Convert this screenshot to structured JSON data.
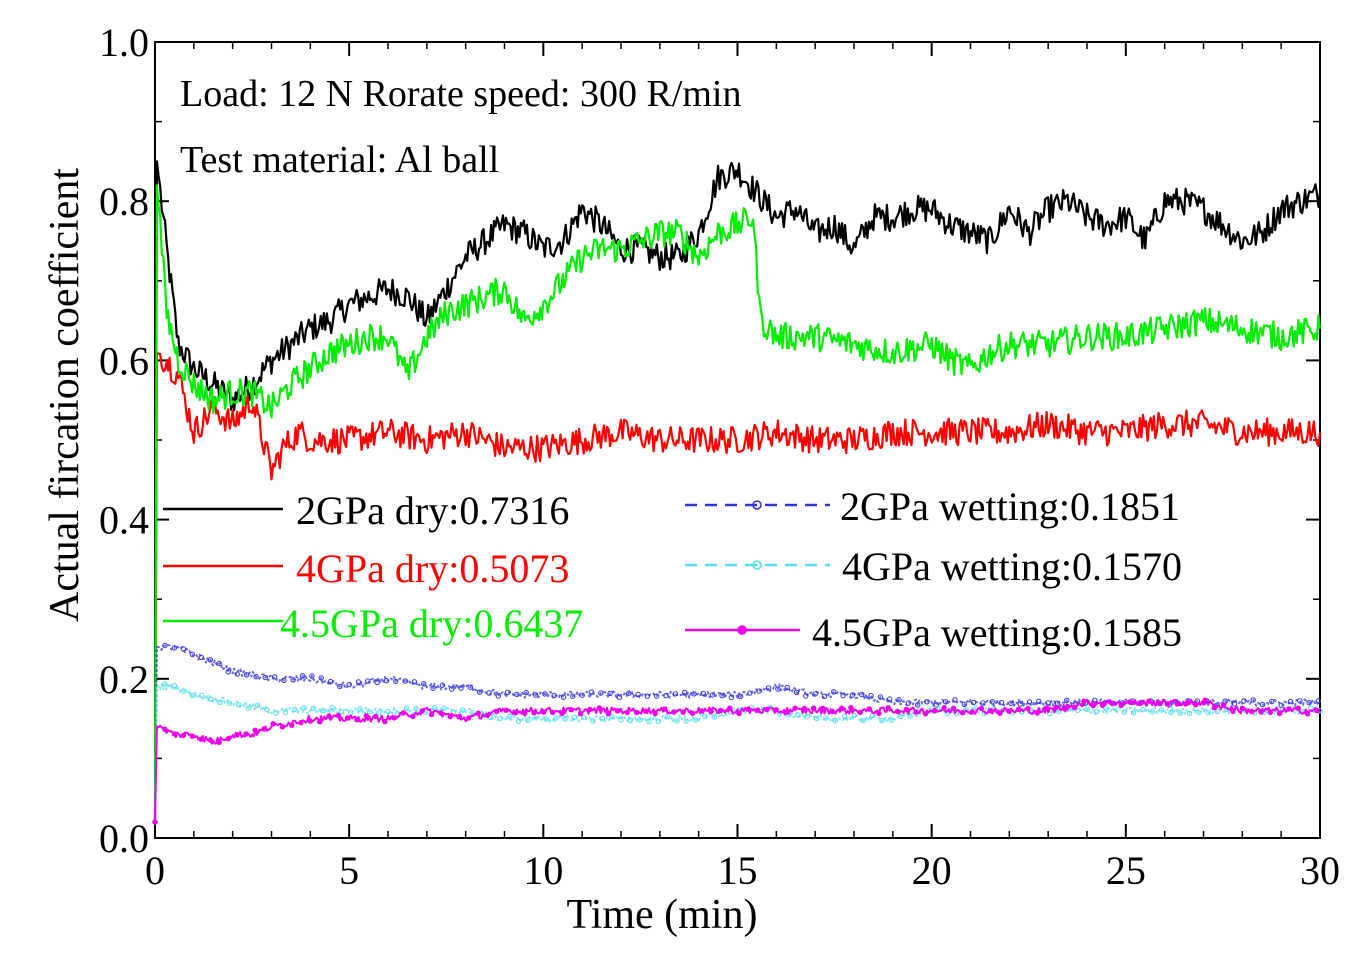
{
  "chart_data": {
    "type": "line",
    "ylabel": "Actual fircation coefficient",
    "xlabel": "Time (min)",
    "xlim": [
      0,
      30
    ],
    "ylim": [
      0,
      1
    ],
    "x_ticks": [
      "0",
      "5",
      "10",
      "15",
      "20",
      "25",
      "30"
    ],
    "y_ticks": [
      "0.0",
      "0.2",
      "0.4",
      "0.6",
      "0.8",
      "1.0"
    ],
    "annotations": [
      "Load: 12 N Rorate speed: 300 R/min",
      "Test material: Al ball"
    ],
    "series": [
      {
        "name": "2GPa dry",
        "legend": "2GPa dry:0.7316",
        "color": "#000000",
        "style": "solid",
        "label_color": "#000000",
        "points": [
          [
            0,
            0.02
          ],
          [
            0.05,
            0.85
          ],
          [
            0.3,
            0.74
          ],
          [
            0.6,
            0.62
          ],
          [
            1.0,
            0.59
          ],
          [
            1.5,
            0.57
          ],
          [
            2.0,
            0.55
          ],
          [
            2.5,
            0.57
          ],
          [
            3.0,
            0.6
          ],
          [
            3.5,
            0.62
          ],
          [
            4.0,
            0.64
          ],
          [
            4.5,
            0.65
          ],
          [
            5.0,
            0.67
          ],
          [
            5.5,
            0.68
          ],
          [
            6.0,
            0.69
          ],
          [
            6.5,
            0.68
          ],
          [
            7.0,
            0.65
          ],
          [
            7.5,
            0.69
          ],
          [
            8.0,
            0.73
          ],
          [
            8.5,
            0.75
          ],
          [
            9.0,
            0.77
          ],
          [
            9.5,
            0.76
          ],
          [
            10.0,
            0.74
          ],
          [
            10.5,
            0.75
          ],
          [
            11.0,
            0.79
          ],
          [
            11.5,
            0.77
          ],
          [
            12.0,
            0.74
          ],
          [
            12.5,
            0.74
          ],
          [
            13.0,
            0.73
          ],
          [
            13.5,
            0.73
          ],
          [
            14.0,
            0.76
          ],
          [
            14.5,
            0.83
          ],
          [
            15.0,
            0.84
          ],
          [
            15.5,
            0.81
          ],
          [
            16.0,
            0.78
          ],
          [
            16.5,
            0.79
          ],
          [
            17.0,
            0.76
          ],
          [
            17.5,
            0.77
          ],
          [
            18.0,
            0.74
          ],
          [
            18.5,
            0.78
          ],
          [
            19.0,
            0.78
          ],
          [
            19.5,
            0.79
          ],
          [
            20.0,
            0.79
          ],
          [
            20.5,
            0.77
          ],
          [
            21.0,
            0.76
          ],
          [
            21.5,
            0.75
          ],
          [
            22.0,
            0.79
          ],
          [
            22.5,
            0.76
          ],
          [
            23.0,
            0.79
          ],
          [
            23.5,
            0.8
          ],
          [
            24.0,
            0.78
          ],
          [
            24.5,
            0.77
          ],
          [
            25.0,
            0.78
          ],
          [
            25.5,
            0.75
          ],
          [
            26.0,
            0.8
          ],
          [
            26.5,
            0.8
          ],
          [
            27.0,
            0.79
          ],
          [
            27.5,
            0.77
          ],
          [
            28.0,
            0.75
          ],
          [
            28.5,
            0.76
          ],
          [
            29.0,
            0.79
          ],
          [
            29.5,
            0.8
          ],
          [
            30.0,
            0.81
          ]
        ]
      },
      {
        "name": "4GPa dry",
        "legend": "4GPa dry:0.5073",
        "color": "#ff0000",
        "style": "solid",
        "label_color": "#ff0000",
        "points": [
          [
            0,
            0.02
          ],
          [
            0.05,
            0.61
          ],
          [
            0.3,
            0.6
          ],
          [
            0.6,
            0.58
          ],
          [
            1.0,
            0.51
          ],
          [
            1.5,
            0.54
          ],
          [
            2.0,
            0.52
          ],
          [
            2.5,
            0.55
          ],
          [
            3.0,
            0.46
          ],
          [
            3.3,
            0.49
          ],
          [
            3.7,
            0.51
          ],
          [
            4.0,
            0.5
          ],
          [
            5.0,
            0.5
          ],
          [
            6.0,
            0.51
          ],
          [
            7.0,
            0.5
          ],
          [
            8.0,
            0.51
          ],
          [
            9.0,
            0.49
          ],
          [
            10.0,
            0.49
          ],
          [
            11.0,
            0.5
          ],
          [
            12.0,
            0.51
          ],
          [
            13.0,
            0.5
          ],
          [
            14.0,
            0.5
          ],
          [
            15.0,
            0.5
          ],
          [
            16.0,
            0.51
          ],
          [
            17.0,
            0.5
          ],
          [
            18.0,
            0.5
          ],
          [
            19.0,
            0.51
          ],
          [
            20.0,
            0.51
          ],
          [
            21.0,
            0.51
          ],
          [
            22.0,
            0.51
          ],
          [
            23.0,
            0.52
          ],
          [
            24.0,
            0.51
          ],
          [
            25.0,
            0.51
          ],
          [
            26.0,
            0.52
          ],
          [
            27.0,
            0.52
          ],
          [
            28.0,
            0.51
          ],
          [
            29.0,
            0.51
          ],
          [
            30.0,
            0.51
          ]
        ]
      },
      {
        "name": "4.5GPa dry",
        "legend": "4.5GPa dry:0.6437",
        "color": "#00ee00",
        "style": "solid",
        "label_color": "#00ee00",
        "points": [
          [
            0,
            0.02
          ],
          [
            0.05,
            0.82
          ],
          [
            0.3,
            0.66
          ],
          [
            0.6,
            0.6
          ],
          [
            1.0,
            0.57
          ],
          [
            1.5,
            0.55
          ],
          [
            2.0,
            0.56
          ],
          [
            2.5,
            0.56
          ],
          [
            3.0,
            0.54
          ],
          [
            3.5,
            0.57
          ],
          [
            4.0,
            0.59
          ],
          [
            4.5,
            0.61
          ],
          [
            5.0,
            0.62
          ],
          [
            5.5,
            0.63
          ],
          [
            6.0,
            0.63
          ],
          [
            6.3,
            0.6
          ],
          [
            6.5,
            0.58
          ],
          [
            7.0,
            0.63
          ],
          [
            7.5,
            0.66
          ],
          [
            8.0,
            0.67
          ],
          [
            8.5,
            0.68
          ],
          [
            9.0,
            0.69
          ],
          [
            9.5,
            0.65
          ],
          [
            10.0,
            0.67
          ],
          [
            10.5,
            0.7
          ],
          [
            11.0,
            0.73
          ],
          [
            11.5,
            0.74
          ],
          [
            12.0,
            0.74
          ],
          [
            12.5,
            0.75
          ],
          [
            13.0,
            0.76
          ],
          [
            13.5,
            0.76
          ],
          [
            14.0,
            0.73
          ],
          [
            14.5,
            0.76
          ],
          [
            15.0,
            0.77
          ],
          [
            15.4,
            0.78
          ],
          [
            15.6,
            0.65
          ],
          [
            16.0,
            0.63
          ],
          [
            17.0,
            0.63
          ],
          [
            18.0,
            0.62
          ],
          [
            19.0,
            0.61
          ],
          [
            20.0,
            0.62
          ],
          [
            20.5,
            0.6
          ],
          [
            21.0,
            0.59
          ],
          [
            21.5,
            0.61
          ],
          [
            22.0,
            0.62
          ],
          [
            23.0,
            0.62
          ],
          [
            24.0,
            0.63
          ],
          [
            25.0,
            0.63
          ],
          [
            26.0,
            0.64
          ],
          [
            27.0,
            0.65
          ],
          [
            28.0,
            0.64
          ],
          [
            29.0,
            0.63
          ],
          [
            30.0,
            0.64
          ]
        ]
      },
      {
        "name": "2GPa wetting",
        "legend": "2GPa wetting:0.1851",
        "color": "#3333dd",
        "style": "dashed-marker",
        "label_color": "#000000",
        "points": [
          [
            0,
            0.02
          ],
          [
            0.05,
            0.24
          ],
          [
            0.5,
            0.24
          ],
          [
            1.0,
            0.23
          ],
          [
            1.5,
            0.22
          ],
          [
            2.0,
            0.21
          ],
          [
            3.0,
            0.2
          ],
          [
            4.0,
            0.2
          ],
          [
            5.0,
            0.19
          ],
          [
            6.0,
            0.2
          ],
          [
            7.0,
            0.19
          ],
          [
            8.0,
            0.19
          ],
          [
            9.0,
            0.18
          ],
          [
            10.0,
            0.18
          ],
          [
            11.0,
            0.18
          ],
          [
            12.0,
            0.18
          ],
          [
            13.0,
            0.18
          ],
          [
            14.0,
            0.18
          ],
          [
            15.0,
            0.18
          ],
          [
            16.0,
            0.19
          ],
          [
            17.0,
            0.18
          ],
          [
            18.0,
            0.18
          ],
          [
            19.0,
            0.17
          ],
          [
            20.0,
            0.17
          ],
          [
            21.0,
            0.17
          ],
          [
            22.0,
            0.17
          ],
          [
            23.0,
            0.17
          ],
          [
            24.0,
            0.17
          ],
          [
            25.0,
            0.17
          ],
          [
            26.0,
            0.17
          ],
          [
            27.0,
            0.17
          ],
          [
            28.0,
            0.17
          ],
          [
            29.0,
            0.17
          ],
          [
            30.0,
            0.17
          ]
        ]
      },
      {
        "name": "4GPa wetting",
        "legend": "4GPa wetting:0.1570",
        "color": "#55ddee",
        "style": "dashed-marker",
        "label_color": "#000000",
        "points": [
          [
            0,
            0.02
          ],
          [
            0.05,
            0.19
          ],
          [
            0.5,
            0.19
          ],
          [
            1.0,
            0.18
          ],
          [
            2.0,
            0.17
          ],
          [
            3.0,
            0.16
          ],
          [
            4.0,
            0.16
          ],
          [
            5.0,
            0.16
          ],
          [
            6.0,
            0.16
          ],
          [
            7.0,
            0.16
          ],
          [
            8.0,
            0.16
          ],
          [
            9.0,
            0.15
          ],
          [
            10.0,
            0.15
          ],
          [
            11.0,
            0.15
          ],
          [
            12.0,
            0.15
          ],
          [
            13.0,
            0.15
          ],
          [
            14.0,
            0.15
          ],
          [
            15.0,
            0.16
          ],
          [
            16.0,
            0.16
          ],
          [
            17.0,
            0.15
          ],
          [
            18.0,
            0.15
          ],
          [
            19.0,
            0.15
          ],
          [
            20.0,
            0.16
          ],
          [
            21.0,
            0.16
          ],
          [
            22.0,
            0.16
          ],
          [
            23.0,
            0.16
          ],
          [
            24.0,
            0.16
          ],
          [
            25.0,
            0.16
          ],
          [
            26.0,
            0.16
          ],
          [
            27.0,
            0.16
          ],
          [
            28.0,
            0.16
          ],
          [
            29.0,
            0.16
          ],
          [
            30.0,
            0.16
          ]
        ]
      },
      {
        "name": "4.5GPa wetting",
        "legend": "4.5GPa wetting:0.1585",
        "color": "#ee00ee",
        "style": "solid-marker",
        "label_color": "#000000",
        "points": [
          [
            0,
            0.02
          ],
          [
            0.05,
            0.14
          ],
          [
            0.5,
            0.13
          ],
          [
            1.0,
            0.13
          ],
          [
            1.5,
            0.12
          ],
          [
            2.0,
            0.13
          ],
          [
            2.5,
            0.13
          ],
          [
            3.0,
            0.14
          ],
          [
            4.0,
            0.15
          ],
          [
            5.0,
            0.15
          ],
          [
            6.0,
            0.15
          ],
          [
            7.0,
            0.16
          ],
          [
            8.0,
            0.15
          ],
          [
            9.0,
            0.16
          ],
          [
            10.0,
            0.16
          ],
          [
            11.0,
            0.16
          ],
          [
            12.0,
            0.16
          ],
          [
            13.0,
            0.16
          ],
          [
            14.0,
            0.16
          ],
          [
            15.0,
            0.16
          ],
          [
            16.0,
            0.16
          ],
          [
            17.0,
            0.16
          ],
          [
            18.0,
            0.16
          ],
          [
            19.0,
            0.16
          ],
          [
            20.0,
            0.16
          ],
          [
            21.0,
            0.16
          ],
          [
            22.0,
            0.16
          ],
          [
            23.0,
            0.16
          ],
          [
            24.0,
            0.17
          ],
          [
            25.0,
            0.17
          ],
          [
            26.0,
            0.17
          ],
          [
            27.0,
            0.17
          ],
          [
            28.0,
            0.16
          ],
          [
            29.0,
            0.16
          ],
          [
            30.0,
            0.16
          ]
        ]
      }
    ]
  }
}
